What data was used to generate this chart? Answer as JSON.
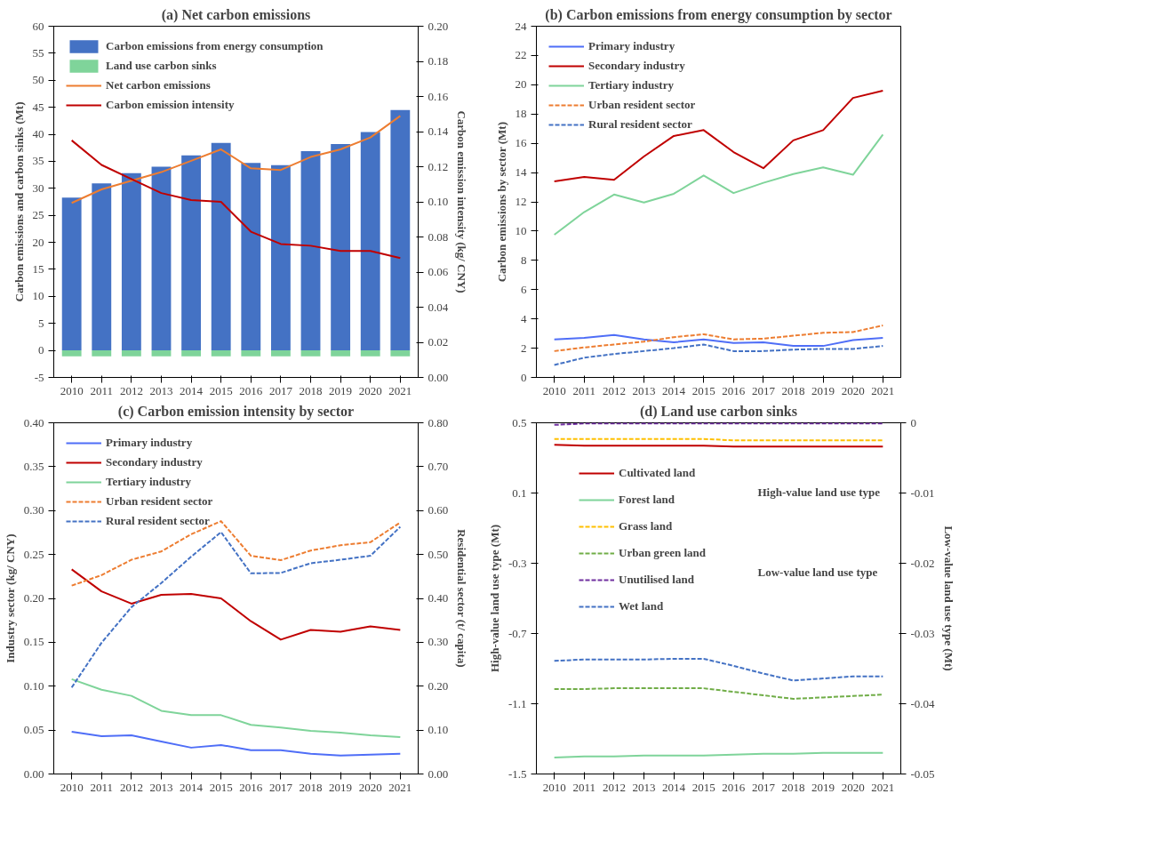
{
  "chart_data": [
    {
      "type": "bar",
      "title": "(a) Net carbon emissions",
      "ylabel": "Carbon emissions and carbon sinks (Mt)",
      "y2label": "Carbon emission intensity (kg/ CNY)",
      "categories": [
        "2010",
        "2011",
        "2012",
        "2013",
        "2014",
        "2015",
        "2016",
        "2017",
        "2018",
        "2019",
        "2020",
        "2021"
      ],
      "series": [
        {
          "name": "Carbon emissions from energy consumption",
          "type": "bar",
          "color": "#4472c4",
          "values": [
            28.3,
            30.9,
            32.8,
            34.0,
            36.1,
            38.4,
            34.7,
            34.3,
            36.9,
            38.2,
            40.4,
            44.5
          ]
        },
        {
          "name": "Land use carbon sinks",
          "type": "bar",
          "color": "#7fd49a",
          "values": [
            -1.1,
            -1.1,
            -1.1,
            -1.1,
            -1.1,
            -1.1,
            -1.1,
            -1.1,
            -1.1,
            -1.1,
            -1.1,
            -1.1
          ]
        },
        {
          "name": "Net carbon emissions",
          "type": "line",
          "color": "#ed7d31",
          "values": [
            27.3,
            29.8,
            31.4,
            33.0,
            35.1,
            37.2,
            33.7,
            33.4,
            35.8,
            37.2,
            39.4,
            43.4
          ]
        },
        {
          "name": "Carbon emission intensity",
          "type": "line",
          "axis": "y2",
          "color": "#c00000",
          "values": [
            0.135,
            0.121,
            0.113,
            0.105,
            0.101,
            0.1,
            0.083,
            0.076,
            0.075,
            0.072,
            0.072,
            0.068
          ]
        }
      ],
      "ylim": [
        -5,
        60
      ],
      "yticks": [
        -5,
        0,
        5,
        10,
        15,
        20,
        25,
        30,
        35,
        40,
        45,
        50,
        55,
        60
      ],
      "y2lim": [
        0,
        0.2
      ],
      "y2ticks": [
        {
          "value": 0,
          "label": "0.00"
        },
        {
          "value": 0.02,
          "label": "0.02"
        },
        {
          "value": 0.04,
          "label": "0.04"
        },
        {
          "value": 0.06,
          "label": "0.06"
        },
        {
          "value": 0.08,
          "label": "0.08"
        },
        {
          "value": 0.1,
          "label": "0.10"
        },
        {
          "value": 0.12,
          "label": "0.12"
        },
        {
          "value": 0.14,
          "label": "0.14"
        },
        {
          "value": 0.16,
          "label": "0.16"
        },
        {
          "value": 0.18,
          "label": "0.18"
        },
        {
          "value": 0.2,
          "label": "0.20"
        }
      ],
      "stacked": true,
      "grid": false,
      "legend": "top left"
    },
    {
      "type": "line",
      "title": "(b) Carbon emissions from energy consumption by sector",
      "ylabel": "Carbon emissions by sector (Mt)",
      "categories": [
        "2010",
        "2011",
        "2012",
        "2013",
        "2014",
        "2015",
        "2016",
        "2017",
        "2018",
        "2019",
        "2020",
        "2021"
      ],
      "series": [
        {
          "name": "Primary industry",
          "color": "#4f6ef7",
          "line_style": "solid",
          "values": [
            2.6,
            2.7,
            2.9,
            2.6,
            2.4,
            2.6,
            2.35,
            2.4,
            2.15,
            2.15,
            2.55,
            2.7
          ]
        },
        {
          "name": "Secondary industry",
          "color": "#c00000",
          "line_style": "solid",
          "values": [
            13.4,
            13.7,
            13.5,
            15.1,
            16.5,
            16.9,
            15.4,
            14.3,
            16.2,
            16.9,
            19.1,
            19.6
          ]
        },
        {
          "name": "Tertiary industry",
          "color": "#7fd49a",
          "line_style": "solid",
          "values": [
            9.75,
            11.3,
            12.5,
            11.95,
            12.55,
            13.8,
            12.6,
            13.3,
            13.9,
            14.35,
            13.85,
            16.6
          ]
        },
        {
          "name": "Urban resident sector",
          "color": "#ed7d31",
          "line_style": "dashed",
          "values": [
            1.8,
            2.05,
            2.25,
            2.45,
            2.75,
            2.95,
            2.6,
            2.65,
            2.85,
            3.05,
            3.1,
            3.55
          ]
        },
        {
          "name": "Rural resident sector",
          "color": "#4472c4",
          "line_style": "dashed",
          "values": [
            0.85,
            1.35,
            1.6,
            1.8,
            2.0,
            2.25,
            1.8,
            1.8,
            1.9,
            1.95,
            1.95,
            2.15
          ]
        }
      ],
      "ylim": [
        0,
        24
      ],
      "yticks": [
        0,
        2,
        4,
        6,
        8,
        10,
        12,
        14,
        16,
        18,
        20,
        22,
        24
      ],
      "grid": false,
      "legend": "top left"
    },
    {
      "type": "line",
      "title": "(c) Carbon emission intensity by sector",
      "ylabel": "Industry sector (kg/ CNY)",
      "y2label": "Residential sector (t/ capita)",
      "categories": [
        "2010",
        "2011",
        "2012",
        "2013",
        "2014",
        "2015",
        "2016",
        "2017",
        "2018",
        "2019",
        "2020",
        "2021"
      ],
      "series": [
        {
          "name": "Primary industry",
          "color": "#4f6ef7",
          "line_style": "solid",
          "values": [
            0.048,
            0.043,
            0.044,
            0.037,
            0.03,
            0.033,
            0.027,
            0.027,
            0.023,
            0.021,
            0.022,
            0.023
          ]
        },
        {
          "name": "Secondary industry",
          "color": "#c00000",
          "line_style": "solid",
          "values": [
            0.233,
            0.208,
            0.194,
            0.204,
            0.205,
            0.2,
            0.174,
            0.153,
            0.164,
            0.162,
            0.168,
            0.164
          ]
        },
        {
          "name": "Tertiary industry",
          "color": "#7fd49a",
          "line_style": "solid",
          "values": [
            0.108,
            0.096,
            0.089,
            0.072,
            0.067,
            0.067,
            0.056,
            0.053,
            0.049,
            0.047,
            0.044,
            0.042
          ]
        },
        {
          "name": "Urban resident sector",
          "color": "#ed7d31",
          "line_style": "dashed",
          "axis": "y2",
          "values": [
            0.429,
            0.453,
            0.488,
            0.507,
            0.546,
            0.576,
            0.497,
            0.487,
            0.509,
            0.521,
            0.528,
            0.573
          ]
        },
        {
          "name": "Rural resident sector",
          "color": "#4472c4",
          "line_style": "dashed",
          "axis": "y2",
          "values": [
            0.197,
            0.299,
            0.38,
            0.435,
            0.495,
            0.551,
            0.457,
            0.458,
            0.48,
            0.488,
            0.497,
            0.563
          ]
        }
      ],
      "ylim": [
        0,
        0.4
      ],
      "yticks": [
        {
          "value": 0,
          "label": "0.00"
        },
        {
          "value": 0.05,
          "label": "0.05"
        },
        {
          "value": 0.1,
          "label": "0.10"
        },
        {
          "value": 0.15,
          "label": "0.15"
        },
        {
          "value": 0.2,
          "label": "0.20"
        },
        {
          "value": 0.25,
          "label": "0.25"
        },
        {
          "value": 0.3,
          "label": "0.30"
        },
        {
          "value": 0.35,
          "label": "0.35"
        },
        {
          "value": 0.4,
          "label": "0.40"
        }
      ],
      "y2lim": [
        0,
        0.8
      ],
      "y2ticks": [
        {
          "value": 0,
          "label": "0.00"
        },
        {
          "value": 0.1,
          "label": "0.10"
        },
        {
          "value": 0.2,
          "label": "0.20"
        },
        {
          "value": 0.3,
          "label": "0.30"
        },
        {
          "value": 0.4,
          "label": "0.40"
        },
        {
          "value": 0.5,
          "label": "0.50"
        },
        {
          "value": 0.6,
          "label": "0.60"
        },
        {
          "value": 0.7,
          "label": "0.70"
        },
        {
          "value": 0.8,
          "label": "0.80"
        }
      ],
      "grid": false,
      "legend": "top left"
    },
    {
      "type": "line",
      "title": "(d) Land use carbon sinks",
      "ylabel": "High-value land use type (Mt)",
      "y2label": "Low-value land use type (Mt)",
      "categories": [
        "2010",
        "2011",
        "2012",
        "2013",
        "2014",
        "2015",
        "2016",
        "2017",
        "2018",
        "2019",
        "2020",
        "2021"
      ],
      "series": [
        {
          "name": "Cultivated land",
          "color": "#c00000",
          "line_style": "solid",
          "values": [
            0.375,
            0.37,
            0.37,
            0.37,
            0.37,
            0.37,
            0.365,
            0.365,
            0.365,
            0.365,
            0.365,
            0.365
          ]
        },
        {
          "name": "Forest land",
          "color": "#7fd49a",
          "line_style": "solid",
          "values": [
            -1.406,
            -1.4,
            -1.4,
            -1.395,
            -1.395,
            -1.395,
            -1.39,
            -1.385,
            -1.385,
            -1.38,
            -1.38,
            -1.38
          ]
        },
        {
          "name": "Grass land",
          "color": "#ffc000",
          "line_style": "dashed",
          "axis": "y2",
          "values": [
            -0.0023,
            -0.0023,
            -0.0023,
            -0.0023,
            -0.0023,
            -0.0023,
            -0.0025,
            -0.0025,
            -0.0025,
            -0.0025,
            -0.0025,
            -0.0025
          ]
        },
        {
          "name": "Urban green land",
          "color": "#70ad47",
          "line_style": "dashed",
          "axis": "y2",
          "values": [
            -0.0379,
            -0.0379,
            -0.0378,
            -0.0378,
            -0.0378,
            -0.0378,
            -0.0383,
            -0.0388,
            -0.0393,
            -0.0391,
            -0.0389,
            -0.0387
          ]
        },
        {
          "name": "Unutilised land",
          "color": "#7030a0",
          "line_style": "dashed",
          "axis": "y2",
          "values": [
            -0.0003,
            -0.0001,
            -0.0001,
            -0.0001,
            -0.0001,
            -0.0001,
            -0.0001,
            -0.0001,
            -0.0001,
            -0.0001,
            -0.0001,
            -0.0001
          ]
        },
        {
          "name": "Wet land",
          "color": "#4472c4",
          "line_style": "dashed",
          "axis": "y2",
          "values": [
            -0.0339,
            -0.0337,
            -0.0337,
            -0.0337,
            -0.0336,
            -0.0336,
            -0.0346,
            -0.0357,
            -0.0367,
            -0.0364,
            -0.0361,
            -0.0361
          ]
        }
      ],
      "ylim": [
        -1.5,
        0.5
      ],
      "yticks": [
        -1.5,
        -1.1,
        -0.7,
        -0.3,
        0.1,
        0.5
      ],
      "y2lim": [
        -0.05,
        0
      ],
      "y2ticks": [
        -0.05,
        -0.04,
        -0.03,
        -0.02,
        -0.01,
        0
      ],
      "annotations": [
        "High-value land use type",
        "Low-value land use type"
      ],
      "grid": false,
      "legend": "top left"
    }
  ]
}
